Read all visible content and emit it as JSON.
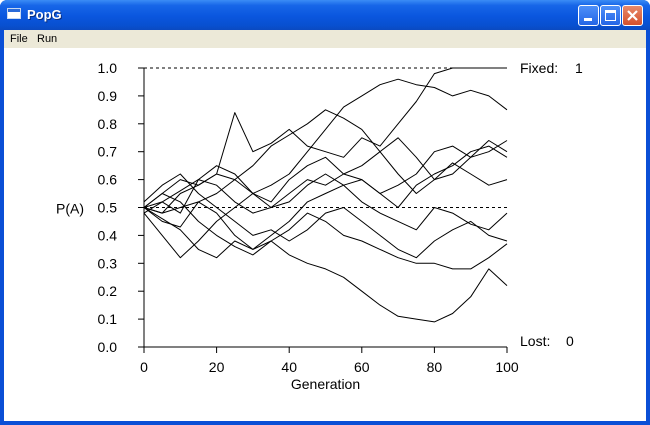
{
  "window": {
    "title": "PopG",
    "controls": {
      "minimize": "minimize",
      "maximize": "maximize",
      "close": "close"
    }
  },
  "menu": {
    "items": [
      "File",
      "Run"
    ]
  },
  "chart_data": {
    "type": "line",
    "title": "",
    "xlabel": "Generation",
    "ylabel": "P(A)",
    "xlim": [
      0,
      100
    ],
    "ylim": [
      0,
      1
    ],
    "xticks": [
      0,
      20,
      40,
      60,
      80,
      100
    ],
    "yticks": [
      "0.0",
      "0.1",
      "0.2",
      "0.3",
      "0.4",
      "0.5",
      "0.6",
      "0.7",
      "0.8",
      "0.9",
      "1.0"
    ],
    "reference_lines": [
      0.0,
      0.5,
      1.0
    ],
    "grid": false,
    "legend": "none",
    "line_color": "#000000",
    "annotations": {
      "fixed_label": "Fixed:",
      "fixed_count": "1",
      "lost_label": "Lost:",
      "lost_count": "0"
    },
    "series": [
      {
        "x": [
          0,
          5,
          10,
          15,
          20,
          25,
          30,
          35,
          40,
          45,
          50,
          55,
          60,
          65,
          70,
          75,
          80,
          85,
          90,
          95,
          100
        ],
        "values": [
          0.5,
          0.48,
          0.55,
          0.58,
          0.62,
          0.84,
          0.7,
          0.73,
          0.78,
          0.72,
          0.7,
          0.68,
          0.75,
          0.72,
          0.8,
          0.88,
          0.98,
          1.0,
          1.0,
          1.0,
          1.0
        ]
      },
      {
        "x": [
          0,
          5,
          10,
          15,
          20,
          25,
          30,
          35,
          40,
          45,
          50,
          55,
          60,
          65,
          70,
          75,
          80,
          85,
          90,
          95,
          100
        ],
        "values": [
          0.5,
          0.45,
          0.43,
          0.52,
          0.48,
          0.4,
          0.35,
          0.38,
          0.33,
          0.3,
          0.28,
          0.25,
          0.2,
          0.15,
          0.11,
          0.1,
          0.09,
          0.12,
          0.18,
          0.28,
          0.22
        ]
      },
      {
        "x": [
          0,
          5,
          10,
          15,
          20,
          25,
          30,
          35,
          40,
          45,
          50,
          55,
          60,
          65,
          70,
          75,
          80,
          85,
          90,
          95,
          100
        ],
        "values": [
          0.5,
          0.55,
          0.6,
          0.58,
          0.62,
          0.6,
          0.55,
          0.58,
          0.62,
          0.7,
          0.78,
          0.86,
          0.9,
          0.94,
          0.96,
          0.94,
          0.93,
          0.9,
          0.92,
          0.9,
          0.85
        ]
      },
      {
        "x": [
          0,
          5,
          10,
          15,
          20,
          25,
          30,
          35,
          40,
          45,
          50,
          55,
          60,
          65,
          70,
          75,
          80,
          85,
          90,
          95,
          100
        ],
        "values": [
          0.48,
          0.4,
          0.32,
          0.38,
          0.45,
          0.5,
          0.55,
          0.52,
          0.6,
          0.65,
          0.68,
          0.62,
          0.6,
          0.55,
          0.58,
          0.62,
          0.7,
          0.72,
          0.68,
          0.74,
          0.7
        ]
      },
      {
        "x": [
          0,
          5,
          10,
          15,
          20,
          25,
          30,
          35,
          40,
          45,
          50,
          55,
          60,
          65,
          70,
          75,
          80,
          85,
          90,
          95,
          100
        ],
        "values": [
          0.52,
          0.58,
          0.62,
          0.55,
          0.5,
          0.45,
          0.4,
          0.42,
          0.38,
          0.42,
          0.48,
          0.5,
          0.45,
          0.4,
          0.35,
          0.32,
          0.38,
          0.42,
          0.45,
          0.4,
          0.38
        ]
      },
      {
        "x": [
          0,
          5,
          10,
          15,
          20,
          25,
          30,
          35,
          40,
          45,
          50,
          55,
          60,
          65,
          70,
          75,
          80,
          85,
          90,
          95,
          100
        ],
        "values": [
          0.5,
          0.52,
          0.48,
          0.6,
          0.65,
          0.62,
          0.55,
          0.5,
          0.52,
          0.58,
          0.62,
          0.58,
          0.52,
          0.48,
          0.45,
          0.42,
          0.5,
          0.48,
          0.44,
          0.42,
          0.48
        ]
      },
      {
        "x": [
          0,
          5,
          10,
          15,
          20,
          25,
          30,
          35,
          40,
          45,
          50,
          55,
          60,
          65,
          70,
          75,
          80,
          85,
          90,
          95,
          100
        ],
        "values": [
          0.5,
          0.46,
          0.42,
          0.35,
          0.32,
          0.38,
          0.35,
          0.4,
          0.45,
          0.52,
          0.55,
          0.58,
          0.6,
          0.55,
          0.5,
          0.58,
          0.62,
          0.65,
          0.7,
          0.72,
          0.68
        ]
      },
      {
        "x": [
          0,
          5,
          10,
          15,
          20,
          25,
          30,
          35,
          40,
          45,
          50,
          55,
          60,
          65,
          70,
          75,
          80,
          85,
          90,
          95,
          100
        ],
        "values": [
          0.48,
          0.52,
          0.56,
          0.6,
          0.58,
          0.52,
          0.48,
          0.5,
          0.55,
          0.6,
          0.58,
          0.62,
          0.65,
          0.7,
          0.75,
          0.68,
          0.6,
          0.62,
          0.68,
          0.7,
          0.74
        ]
      },
      {
        "x": [
          0,
          5,
          10,
          15,
          20,
          25,
          30,
          35,
          40,
          45,
          50,
          55,
          60,
          65,
          70,
          75,
          80,
          85,
          90,
          95,
          100
        ],
        "values": [
          0.5,
          0.48,
          0.5,
          0.52,
          0.55,
          0.6,
          0.65,
          0.72,
          0.76,
          0.8,
          0.85,
          0.82,
          0.78,
          0.7,
          0.62,
          0.55,
          0.6,
          0.66,
          0.62,
          0.58,
          0.6
        ]
      },
      {
        "x": [
          0,
          5,
          10,
          15,
          20,
          25,
          30,
          35,
          40,
          45,
          50,
          55,
          60,
          65,
          70,
          75,
          80,
          85,
          90,
          95,
          100
        ],
        "values": [
          0.5,
          0.55,
          0.52,
          0.45,
          0.4,
          0.36,
          0.33,
          0.38,
          0.42,
          0.48,
          0.45,
          0.4,
          0.38,
          0.35,
          0.32,
          0.3,
          0.3,
          0.28,
          0.28,
          0.32,
          0.37
        ]
      }
    ]
  }
}
